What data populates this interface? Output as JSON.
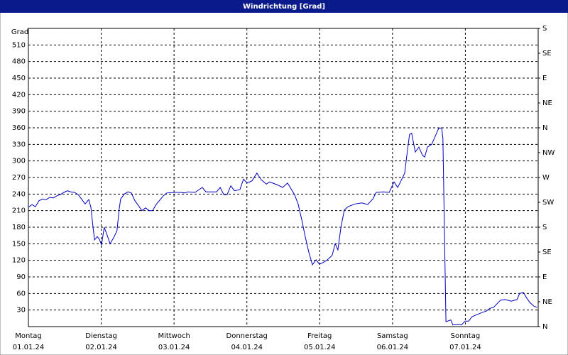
{
  "chart_data": {
    "type": "line",
    "title": "Windrichtung [Grad]",
    "ylabel": "Grad",
    "xlim": [
      0,
      168
    ],
    "xticks": [
      {
        "value": 0,
        "label": "Montag"
      },
      {
        "value": 24,
        "label": "Dienstag"
      },
      {
        "value": 48,
        "label": "Mittwoch"
      },
      {
        "value": 72,
        "label": "Donnerstag"
      },
      {
        "value": 96,
        "label": "Freitag"
      },
      {
        "value": 120,
        "label": "Samstag"
      },
      {
        "value": 144,
        "label": "Sonntag"
      }
    ],
    "xtick_dates": [
      "01.01.24",
      "02.01.24",
      "03.01.24",
      "04.01.24",
      "05.01.24",
      "06.01.24",
      "07.01.24"
    ],
    "ylim": [
      0,
      540
    ],
    "yticks": [
      30,
      60,
      90,
      120,
      150,
      180,
      210,
      240,
      270,
      300,
      330,
      360,
      390,
      420,
      450,
      480,
      510
    ],
    "y2lim": [
      0,
      540
    ],
    "y2ticks": [
      {
        "value": 0,
        "label": "N"
      },
      {
        "value": 45,
        "label": "NE"
      },
      {
        "value": 90,
        "label": "E"
      },
      {
        "value": 135,
        "label": "SE"
      },
      {
        "value": 180,
        "label": "S"
      },
      {
        "value": 225,
        "label": "SW"
      },
      {
        "value": 270,
        "label": "W"
      },
      {
        "value": 315,
        "label": "NW"
      },
      {
        "value": 360,
        "label": "N"
      },
      {
        "value": 405,
        "label": "NE"
      },
      {
        "value": 450,
        "label": "E"
      },
      {
        "value": 495,
        "label": "SE"
      },
      {
        "value": 540,
        "label": "S"
      }
    ],
    "grid": true,
    "series": [
      {
        "color": "#0000c0",
        "x": [
          0,
          1.2,
          2.3,
          3.5,
          4.7,
          5.9,
          7,
          8.2,
          9.4,
          10.5,
          11.7,
          12.9,
          14,
          15.2,
          16.4,
          17.5,
          18.7,
          19.9,
          20.6,
          21.3,
          21.8,
          22.7,
          23.4,
          24.1,
          25,
          26,
          26.9,
          28.1,
          29.2,
          29.9,
          30.4,
          31.6,
          32.8,
          33.9,
          35.1,
          36.3,
          37.4,
          38.6,
          39.8,
          40.9,
          42.1,
          44.5,
          45.6,
          48,
          50.3,
          51.5,
          52.6,
          54.9,
          57.3,
          58.5,
          62,
          63.2,
          64.4,
          65.5,
          66.7,
          67.9,
          69.7,
          70.9,
          72.1,
          73.7,
          75.3,
          76.7,
          78.4,
          79.5,
          81.9,
          83.8,
          85.4,
          86.6,
          87.7,
          88.9,
          90.1,
          91.3,
          92.4,
          93.6,
          94.8,
          95.9,
          97.1,
          98.3,
          100.1,
          101.1,
          102,
          103,
          104.1,
          105.3,
          107.6,
          109.9,
          111.8,
          113.5,
          114.6,
          117,
          118.9,
          120.5,
          121.7,
          122.8,
          124,
          124.7,
          125.6,
          126.3,
          127.5,
          128.7,
          129.9,
          130.6,
          131.5,
          132.9,
          134.1,
          135.2,
          136.2,
          136.6,
          137.6,
          139.2,
          139.9,
          141.6,
          142.7,
          143.9,
          145.1,
          146.2,
          147.9,
          149.7,
          150.9,
          152.1,
          153.3,
          155.6,
          157.2,
          159.1,
          161,
          161.9,
          163.1,
          164.3,
          165.2,
          166.6,
          167.6
        ],
        "values": [
          216,
          221,
          217,
          228,
          231,
          230,
          234,
          233,
          237,
          239,
          243,
          246,
          244,
          243,
          239,
          231,
          222,
          230,
          216,
          180,
          157,
          163,
          158,
          148,
          180,
          165,
          150,
          161,
          174,
          212,
          231,
          240,
          244,
          242,
          228,
          219,
          210,
          215,
          210,
          210,
          221,
          237,
          242,
          243,
          243,
          242,
          244,
          243,
          252,
          244,
          244,
          252,
          239,
          239,
          255,
          246,
          248,
          267,
          260,
          264,
          278,
          266,
          258,
          262,
          257,
          252,
          260,
          249,
          239,
          222,
          193,
          161,
          135,
          112,
          121,
          113,
          116,
          120,
          129,
          150,
          139,
          180,
          211,
          217,
          222,
          224,
          221,
          231,
          243,
          244,
          243,
          262,
          252,
          264,
          278,
          309,
          348,
          350,
          316,
          325,
          310,
          307,
          325,
          330,
          345,
          359,
          360,
          341,
          9,
          12,
          3,
          4,
          3,
          10,
          10,
          18,
          22,
          26,
          28,
          33,
          35,
          48,
          49,
          46,
          49,
          60,
          62,
          51,
          44,
          37,
          35
        ]
      }
    ]
  }
}
